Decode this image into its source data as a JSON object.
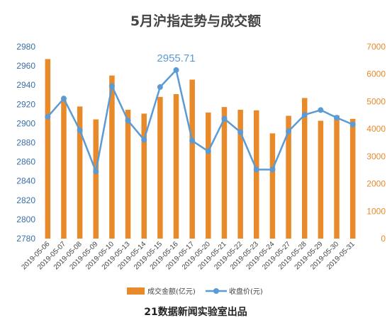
{
  "chart_data": {
    "type": "bar-line-combo",
    "title": "5月沪指走势与成交额",
    "footer": "21数据新闻实验室出品",
    "categories": [
      "2019-05-06",
      "2019-05-07",
      "2019-05-08",
      "2019-05-09",
      "2019-05-10",
      "2019-05-13",
      "2019-05-14",
      "2019-05-15",
      "2019-05-16",
      "2019-05-17",
      "2019-05-20",
      "2019-05-21",
      "2019-05-22",
      "2019-05-23",
      "2019-05-24",
      "2019-05-27",
      "2019-05-28",
      "2019-05-29",
      "2019-05-30",
      "2019-05-31"
    ],
    "series": [
      {
        "name": "成交金额(亿元)",
        "type": "bar",
        "axis": "right",
        "color": "#e8892a",
        "values": [
          6550,
          5050,
          4820,
          4350,
          5950,
          4700,
          4560,
          5170,
          5270,
          5800,
          4600,
          4800,
          4700,
          4680,
          3840,
          4480,
          5130,
          4300,
          4500,
          4370
        ]
      },
      {
        "name": "收盘价(元)",
        "type": "line",
        "axis": "left",
        "color": "#5b9bd5",
        "values": [
          2907,
          2926,
          2893,
          2850,
          2939,
          2903,
          2883,
          2938,
          2955.71,
          2882,
          2871,
          2905,
          2891,
          2852,
          2852,
          2892,
          2909,
          2914,
          2906,
          2899
        ]
      }
    ],
    "y_left": {
      "min": 2780,
      "max": 2980,
      "step": 20,
      "ticks": [
        "2980",
        "2960",
        "2940",
        "2920",
        "2900",
        "2880",
        "2860",
        "2840",
        "2820",
        "2800",
        "2780"
      ]
    },
    "y_right": {
      "min": 0,
      "max": 7000,
      "step": 1000,
      "ticks": [
        "7000",
        "6000",
        "5000",
        "4000",
        "3000",
        "2000",
        "1000",
        "0"
      ]
    },
    "annotations": [
      {
        "series": 1,
        "index": 8,
        "text": "2955.71"
      }
    ],
    "legend": {
      "position": "bottom"
    },
    "grid": false
  }
}
